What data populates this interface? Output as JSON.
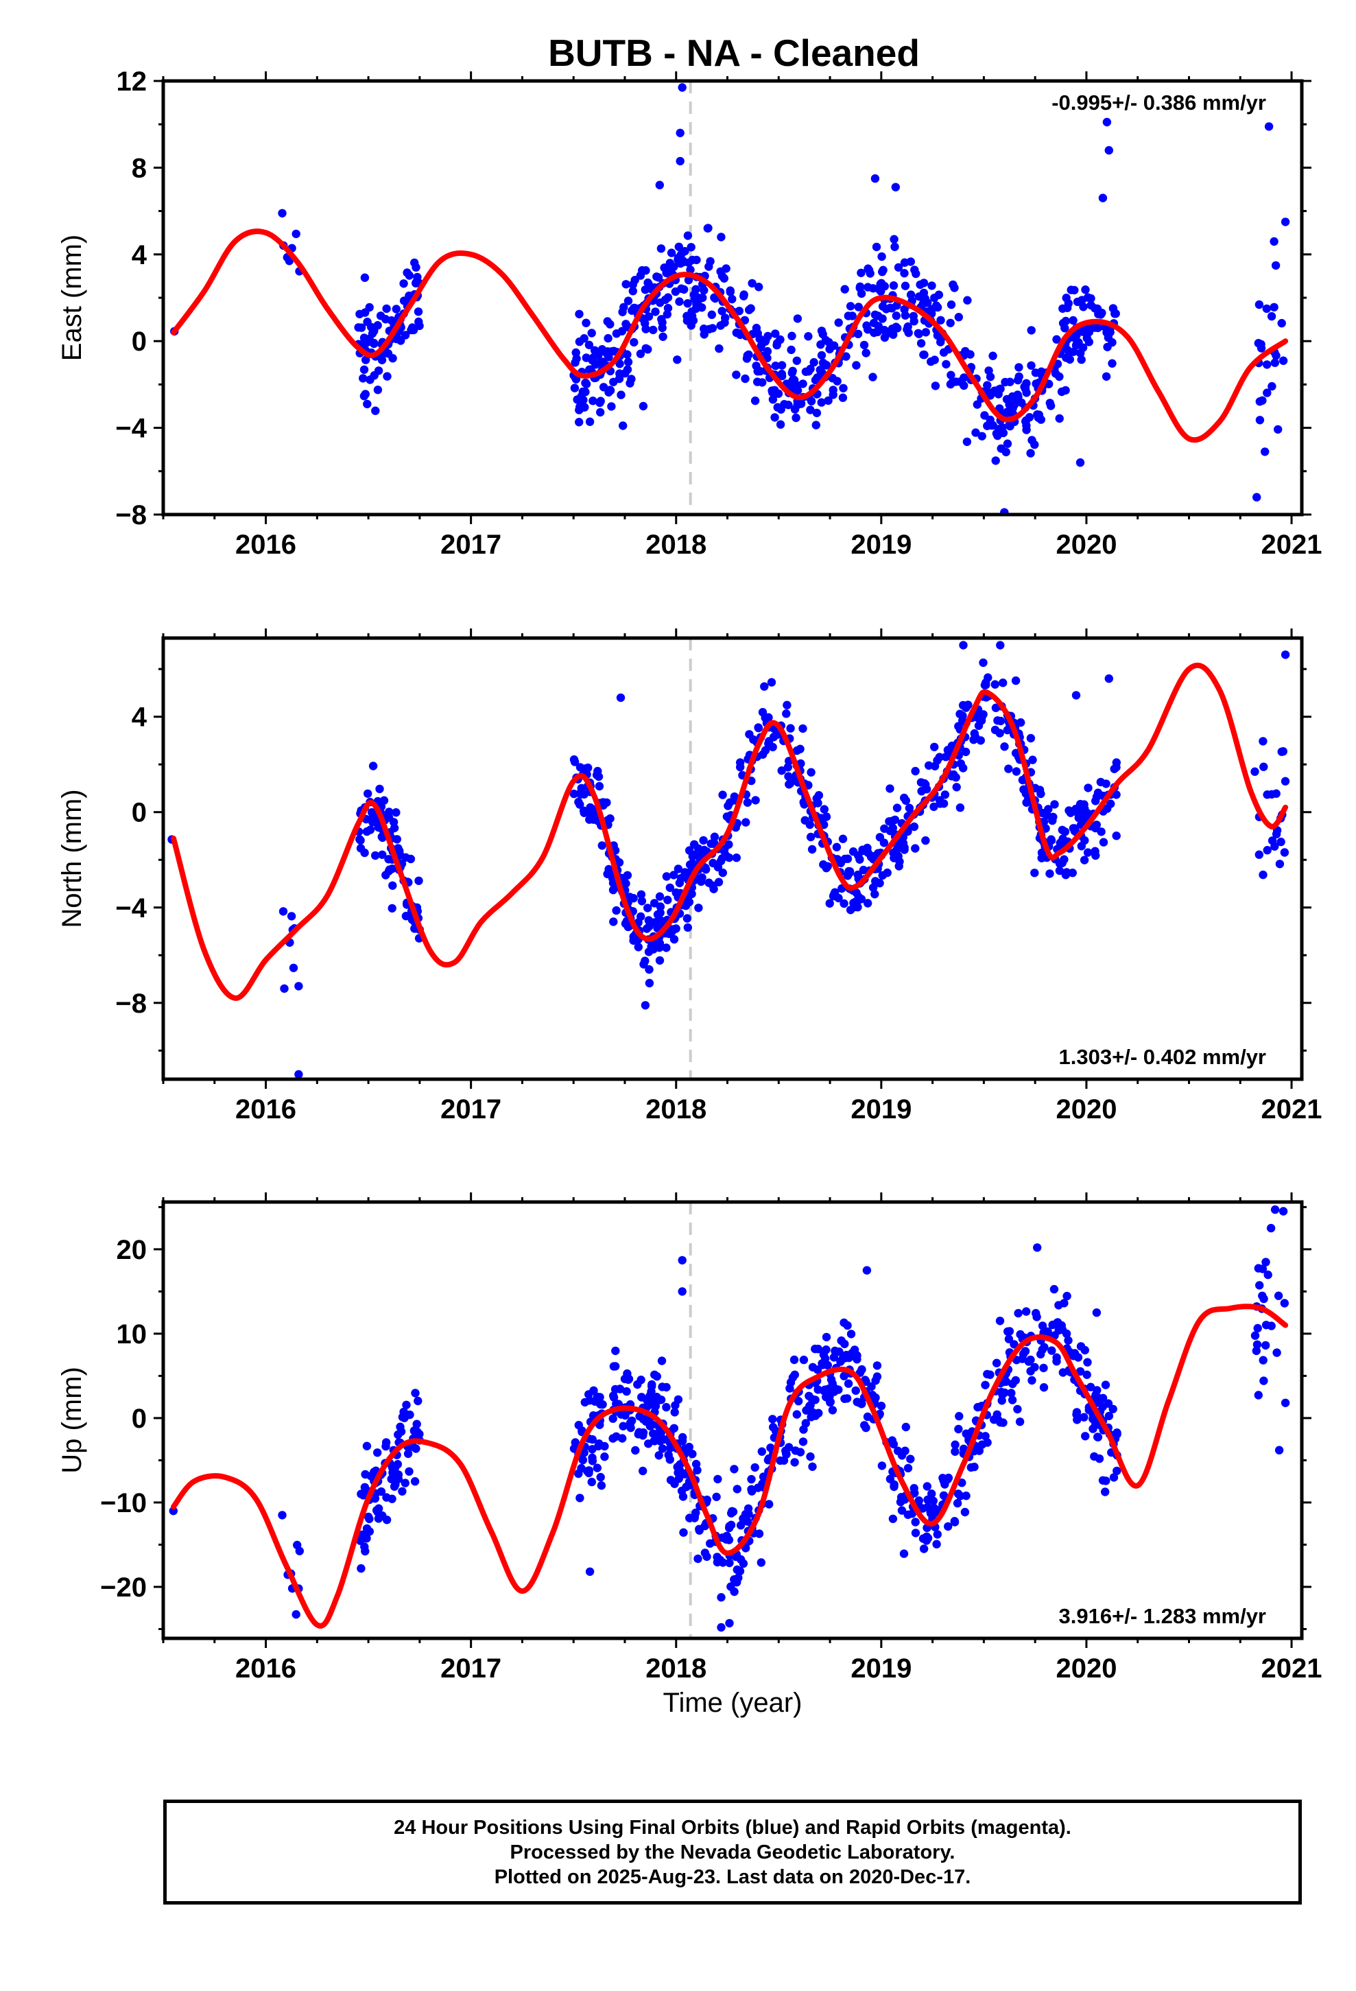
{
  "title": "BUTB  - NA - Cleaned",
  "colors": {
    "points": "#0000ff",
    "fit": "#ff0000",
    "marker_line": "#cccccc",
    "frame": "#000000"
  },
  "chart_data": [
    {
      "type": "scatter",
      "name": "east",
      "ylabel": "East (mm)",
      "xlabel": "",
      "xlim": [
        2015.5,
        2021.05
      ],
      "ylim": [
        -8,
        12
      ],
      "xticks": [
        "2016",
        "2017",
        "2018",
        "2019",
        "2020",
        "2021"
      ],
      "yticks": [
        "12",
        "8",
        "4",
        "0",
        "−4",
        "−8"
      ],
      "ytick_values": [
        12,
        8,
        4,
        0,
        -4,
        -8
      ],
      "rate_label": "-0.995+/- 0.386 mm/yr",
      "rate_label_position": "top-right",
      "marker_x": 2018.07,
      "fit_curve": {
        "x": [
          2015.55,
          2015.7,
          2015.85,
          2016.0,
          2016.15,
          2016.3,
          2016.45,
          2016.55,
          2016.7,
          2016.85,
          2017.0,
          2017.15,
          2017.3,
          2017.45,
          2017.55,
          2017.7,
          2017.85,
          2018.0,
          2018.15,
          2018.3,
          2018.45,
          2018.6,
          2018.75,
          2018.9,
          2019.0,
          2019.15,
          2019.3,
          2019.45,
          2019.6,
          2019.75,
          2019.9,
          2020.05,
          2020.2,
          2020.35,
          2020.5,
          2020.65,
          2020.8,
          2020.97
        ],
        "y": [
          0.4,
          2.3,
          4.6,
          5.0,
          3.7,
          1.5,
          -0.3,
          -0.5,
          1.6,
          3.7,
          4.0,
          3.1,
          1.2,
          -0.8,
          -1.6,
          -0.9,
          1.7,
          3.0,
          2.7,
          1.0,
          -1.3,
          -2.6,
          -1.4,
          1.2,
          2.0,
          1.6,
          0.4,
          -1.8,
          -3.6,
          -2.6,
          0.2,
          0.9,
          0.2,
          -2.3,
          -4.5,
          -3.7,
          -1.2,
          0.0
        ]
      },
      "point_clusters": [
        {
          "x0": 2015.54,
          "x1": 2015.56,
          "n": 1,
          "noise": 0.3
        },
        {
          "x0": 2016.08,
          "x1": 2016.18,
          "n": 6,
          "noise": 1.6
        },
        {
          "x0": 2016.45,
          "x1": 2016.75,
          "n": 90,
          "noise": 1.0
        },
        {
          "x0": 2017.5,
          "x1": 2018.1,
          "n": 190,
          "noise": 1.1
        },
        {
          "x0": 2018.1,
          "x1": 2019.55,
          "n": 330,
          "noise": 1.2
        },
        {
          "x0": 2019.55,
          "x1": 2020.15,
          "n": 150,
          "noise": 1.1
        },
        {
          "x0": 2020.82,
          "x1": 2020.97,
          "n": 22,
          "noise": 1.8
        }
      ],
      "outlier_points": [
        {
          "x": 2018.03,
          "y": 11.7
        },
        {
          "x": 2018.02,
          "y": 9.6
        },
        {
          "x": 2018.02,
          "y": 8.3
        },
        {
          "x": 2017.92,
          "y": 7.2
        },
        {
          "x": 2017.84,
          "y": -3.0
        },
        {
          "x": 2019.97,
          "y": -5.6
        },
        {
          "x": 2019.6,
          "y": -7.9
        },
        {
          "x": 2020.1,
          "y": 10.1
        },
        {
          "x": 2020.11,
          "y": 8.8
        },
        {
          "x": 2020.08,
          "y": 6.6
        },
        {
          "x": 2020.89,
          "y": 9.9
        },
        {
          "x": 2020.97,
          "y": 5.5
        },
        {
          "x": 2020.83,
          "y": -7.2
        },
        {
          "x": 2020.87,
          "y": -5.1
        },
        {
          "x": 2018.97,
          "y": 7.5
        },
        {
          "x": 2019.07,
          "y": 7.1
        },
        {
          "x": 2016.08,
          "y": 5.9
        }
      ]
    },
    {
      "type": "scatter",
      "name": "north",
      "ylabel": "North (mm)",
      "xlabel": "",
      "xlim": [
        2015.5,
        2021.05
      ],
      "ylim": [
        -11.2,
        7.3
      ],
      "xticks": [
        "2016",
        "2017",
        "2018",
        "2019",
        "2020",
        "2021"
      ],
      "yticks": [
        "4",
        "0",
        "−4",
        "−8"
      ],
      "ytick_values": [
        4,
        0,
        -4,
        -8
      ],
      "rate_label": "1.303+/- 0.402 mm/yr",
      "rate_label_position": "bottom-right",
      "marker_x": 2018.07,
      "fit_curve": {
        "x": [
          2015.55,
          2015.7,
          2015.85,
          2016.0,
          2016.15,
          2016.3,
          2016.45,
          2016.53,
          2016.65,
          2016.8,
          2016.92,
          2017.05,
          2017.2,
          2017.35,
          2017.5,
          2017.6,
          2017.75,
          2017.85,
          2017.97,
          2018.1,
          2018.25,
          2018.4,
          2018.5,
          2018.65,
          2018.8,
          2018.88,
          2019.0,
          2019.15,
          2019.3,
          2019.45,
          2019.52,
          2019.65,
          2019.8,
          2019.87,
          2020.0,
          2020.15,
          2020.3,
          2020.5,
          2020.65,
          2020.8,
          2020.9,
          2020.97
        ],
        "y": [
          -1.1,
          -5.8,
          -7.8,
          -6.2,
          -4.9,
          -3.5,
          -0.5,
          0.3,
          -2.4,
          -5.8,
          -6.3,
          -4.6,
          -3.4,
          -1.9,
          1.3,
          0.7,
          -3.8,
          -5.3,
          -4.6,
          -2.4,
          -0.9,
          2.8,
          3.6,
          0.4,
          -2.7,
          -3.1,
          -1.9,
          -0.2,
          1.4,
          4.3,
          5.0,
          3.4,
          -1.4,
          -1.7,
          -0.6,
          1.2,
          2.6,
          6.0,
          5.1,
          0.9,
          -0.6,
          0.2
        ]
      },
      "point_clusters": [
        {
          "x0": 2015.54,
          "x1": 2015.56,
          "n": 1,
          "noise": 0.3
        },
        {
          "x0": 2016.08,
          "x1": 2016.18,
          "n": 6,
          "noise": 1.0
        },
        {
          "x0": 2016.45,
          "x1": 2016.75,
          "n": 90,
          "noise": 0.8
        },
        {
          "x0": 2017.5,
          "x1": 2018.1,
          "n": 190,
          "noise": 0.9
        },
        {
          "x0": 2018.1,
          "x1": 2019.55,
          "n": 330,
          "noise": 0.9
        },
        {
          "x0": 2019.55,
          "x1": 2020.15,
          "n": 150,
          "noise": 0.9
        },
        {
          "x0": 2020.82,
          "x1": 2020.97,
          "n": 22,
          "noise": 1.6
        }
      ],
      "outlier_points": [
        {
          "x": 2016.16,
          "y": -11.0
        },
        {
          "x": 2016.09,
          "y": -7.4
        },
        {
          "x": 2016.16,
          "y": -7.3
        },
        {
          "x": 2020.97,
          "y": 6.6
        },
        {
          "x": 2019.4,
          "y": 7.0
        },
        {
          "x": 2019.58,
          "y": 7.0
        },
        {
          "x": 2020.11,
          "y": 5.6
        },
        {
          "x": 2017.85,
          "y": -8.1
        },
        {
          "x": 2019.95,
          "y": 4.9
        },
        {
          "x": 2017.73,
          "y": 4.8
        }
      ]
    },
    {
      "type": "scatter",
      "name": "up",
      "ylabel": "Up (mm)",
      "xlabel": "Time (year)",
      "xlim": [
        2015.5,
        2021.05
      ],
      "ylim": [
        -26.1,
        25.6
      ],
      "xticks": [
        "2016",
        "2017",
        "2018",
        "2019",
        "2020",
        "2021"
      ],
      "yticks": [
        "20",
        "10",
        "0",
        "−10",
        "−20"
      ],
      "ytick_values": [
        20,
        10,
        0,
        -10,
        -20
      ],
      "rate_label": "3.916+/- 1.283 mm/yr",
      "rate_label_position": "bottom-right",
      "marker_x": 2018.07,
      "fit_curve": {
        "x": [
          2015.55,
          2015.65,
          2015.8,
          2015.95,
          2016.1,
          2016.25,
          2016.35,
          2016.5,
          2016.65,
          2016.8,
          2016.95,
          2017.1,
          2017.25,
          2017.4,
          2017.55,
          2017.7,
          2017.9,
          2018.05,
          2018.15,
          2018.25,
          2018.4,
          2018.55,
          2018.7,
          2018.85,
          2018.95,
          2019.1,
          2019.25,
          2019.4,
          2019.55,
          2019.7,
          2019.85,
          2019.95,
          2020.1,
          2020.25,
          2020.4,
          2020.55,
          2020.7,
          2020.85,
          2020.97
        ],
        "y": [
          -10.5,
          -7.5,
          -7.0,
          -9.5,
          -17.5,
          -24.5,
          -21.0,
          -9.5,
          -3.5,
          -3.0,
          -5.5,
          -13.5,
          -20.5,
          -13.5,
          -2.5,
          1.0,
          0.0,
          -5.5,
          -11.5,
          -16.0,
          -11.5,
          1.5,
          5.0,
          5.5,
          1.5,
          -7.5,
          -12.5,
          -5.5,
          3.5,
          9.0,
          9.0,
          5.0,
          -1.5,
          -8.0,
          2.0,
          11.5,
          13.0,
          13.0,
          11.0
        ]
      },
      "point_clusters": [
        {
          "x0": 2015.54,
          "x1": 2015.56,
          "n": 1,
          "noise": 0.8
        },
        {
          "x0": 2016.08,
          "x1": 2016.18,
          "n": 6,
          "noise": 3.5
        },
        {
          "x0": 2016.45,
          "x1": 2016.75,
          "n": 90,
          "noise": 2.8
        },
        {
          "x0": 2017.5,
          "x1": 2018.1,
          "n": 190,
          "noise": 3.0
        },
        {
          "x0": 2018.1,
          "x1": 2019.55,
          "n": 330,
          "noise": 3.0
        },
        {
          "x0": 2019.55,
          "x1": 2020.15,
          "n": 150,
          "noise": 3.0
        },
        {
          "x0": 2020.82,
          "x1": 2020.97,
          "n": 22,
          "noise": 4.5
        }
      ],
      "outlier_points": [
        {
          "x": 2018.03,
          "y": 18.7
        },
        {
          "x": 2018.03,
          "y": 15.0
        },
        {
          "x": 2020.92,
          "y": 24.7
        },
        {
          "x": 2020.96,
          "y": 24.5
        },
        {
          "x": 2020.9,
          "y": 22.5
        },
        {
          "x": 2020.94,
          "y": -3.8
        },
        {
          "x": 2020.97,
          "y": 1.8
        },
        {
          "x": 2018.22,
          "y": -24.8
        },
        {
          "x": 2018.26,
          "y": -24.3
        },
        {
          "x": 2018.93,
          "y": 17.5
        },
        {
          "x": 2019.76,
          "y": 20.2
        },
        {
          "x": 2017.58,
          "y": -18.2
        },
        {
          "x": 2016.08,
          "y": -11.5
        },
        {
          "x": 2016.16,
          "y": -20.2
        },
        {
          "x": 2020.05,
          "y": 12.5
        }
      ]
    }
  ],
  "caption": {
    "line1": "24 Hour Positions Using Final Orbits (blue) and Rapid Orbits (magenta).",
    "line2": "Processed by the Nevada Geodetic Laboratory.",
    "line3": "Plotted on 2025-Aug-23. Last data on 2020-Dec-17."
  }
}
